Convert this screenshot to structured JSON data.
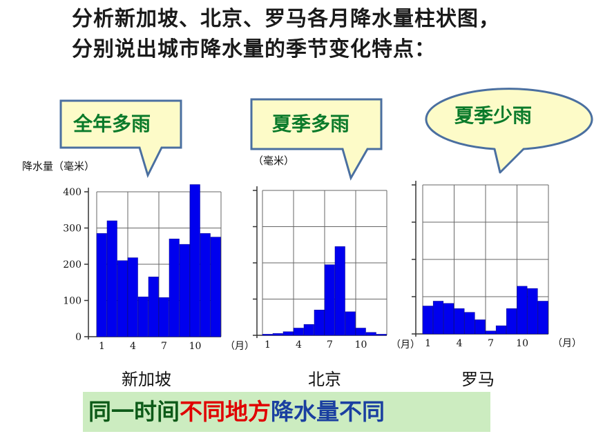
{
  "heading": {
    "line1": "分析新加坡、北京、罗马各月降水量柱状图，",
    "line2": "分别说出城市降水量的季节变化特点："
  },
  "callouts": [
    {
      "text": "全年多雨",
      "shape": "rectangle"
    },
    {
      "text": "夏季多雨",
      "shape": "rectangle"
    },
    {
      "text": "夏季少雨",
      "shape": "ellipse"
    }
  ],
  "conclusion": {
    "part1": "同一时间",
    "part2": "不同地方",
    "part3": "降水量不同"
  },
  "colors": {
    "bar": "#0000ee",
    "callout_fill": "#fdfbc8",
    "callout_stroke": "#4a6fa0",
    "callout_text": "#0a7a2a",
    "conclusion_bg": "#ccecc0"
  },
  "chart_data": [
    {
      "type": "bar",
      "city": "新加坡",
      "ylabel": "降水量（毫米）",
      "x_ticks": [
        "1",
        "4",
        "7",
        "10",
        "（月）"
      ],
      "y_ticks": [
        "0",
        "100",
        "200",
        "300",
        "400"
      ],
      "ylim": [
        0,
        440
      ],
      "categories": [
        1,
        2,
        3,
        4,
        5,
        6,
        7,
        8,
        9,
        10,
        11,
        12
      ],
      "values": [
        285,
        320,
        210,
        218,
        110,
        165,
        108,
        270,
        255,
        420,
        285,
        275
      ]
    },
    {
      "type": "bar",
      "city": "北京",
      "ylabel": "（毫米）",
      "x_ticks": [
        "1",
        "4",
        "7",
        "10",
        "（月）"
      ],
      "ylim": [
        0,
        440
      ],
      "categories": [
        1,
        2,
        3,
        4,
        5,
        6,
        7,
        8,
        9,
        10,
        11,
        12
      ],
      "values": [
        3,
        5,
        10,
        20,
        30,
        70,
        195,
        245,
        65,
        20,
        8,
        3
      ]
    },
    {
      "type": "bar",
      "city": "罗马",
      "x_ticks": [
        "1",
        "4",
        "7",
        "10",
        "（月）"
      ],
      "ylim": [
        0,
        440
      ],
      "categories": [
        1,
        2,
        3,
        4,
        5,
        6,
        7,
        8,
        9,
        10,
        11,
        12
      ],
      "values": [
        75,
        88,
        82,
        68,
        58,
        38,
        8,
        22,
        68,
        128,
        122,
        88
      ]
    }
  ]
}
